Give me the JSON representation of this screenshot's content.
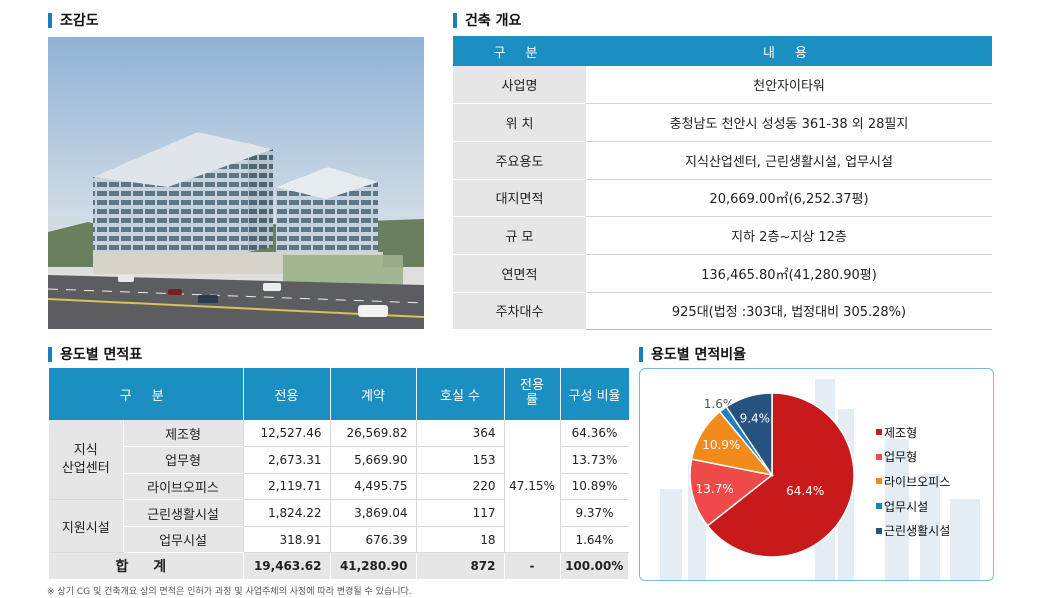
{
  "sections": {
    "birdseye": "조감도",
    "overview": "건축 개요",
    "area_table": "용도별 면적표",
    "area_ratio": "용도별 면적비율"
  },
  "overview": {
    "header": [
      "구 분",
      "내 용"
    ],
    "rows": [
      {
        "label": "사업명",
        "value": "천안자이타워"
      },
      {
        "label": "위 치",
        "value": "충청남도 천안시 성성동 361-38 외 28필지"
      },
      {
        "label": "주요용도",
        "value": "지식산업센터, 근린생활시설, 업무시설"
      },
      {
        "label": "대지면적",
        "value": "20,669.00㎡(6,252.37평)"
      },
      {
        "label": "규 모",
        "value": "지하 2층~지상 12층"
      },
      {
        "label": "연면적",
        "value": "136,465.80㎡(41,280.90평)"
      },
      {
        "label": "주차대수",
        "value": "925대(법정 :303대, 법정대비 305.28%)"
      }
    ]
  },
  "area_table": {
    "headers": [
      "구 분",
      "전용",
      "계약",
      "호실 수",
      "전용\n률",
      "구성 비율"
    ],
    "groups": [
      "지식\n산업센터",
      "지원시설"
    ],
    "rows": [
      {
        "name": "제조형",
        "exclusive": "12,527.46",
        "contract": "26,569.82",
        "units": "364",
        "ratio": "64.36%"
      },
      {
        "name": "업무형",
        "exclusive": "2,673.31",
        "contract": "5,669.90",
        "units": "153",
        "ratio": "13.73%"
      },
      {
        "name": "라이브오피스",
        "exclusive": "2,119.71",
        "contract": "4,495.75",
        "units": "220",
        "ratio": "10.89%"
      },
      {
        "name": "근린생활시설",
        "exclusive": "1,824.22",
        "contract": "3,869.04",
        "units": "117",
        "ratio": "9.37%"
      },
      {
        "name": "업무시설",
        "exclusive": "318.91",
        "contract": "676.39",
        "units": "18",
        "ratio": "1.64%"
      }
    ],
    "usage_rate": "47.15%",
    "total": {
      "label": "합 계",
      "exclusive": "19,463.62",
      "contract": "41,280.90",
      "units": "872",
      "usage_rate": "-",
      "ratio": "100.00%"
    }
  },
  "note": "※ 상기 CG 및 건축개요 상의 면적은 인허가 과정 및 사업주체의 사정에 따라 변경될 수 있습니다.",
  "chart_data": {
    "type": "pie",
    "title": "",
    "slices": [
      {
        "name": "제조형",
        "value": 64.4,
        "label": "64.4%",
        "color": "#c81a1a"
      },
      {
        "name": "업무형",
        "value": 13.7,
        "label": "13.7%",
        "color": "#ee4a4a"
      },
      {
        "name": "라이브오피스",
        "value": 10.9,
        "label": "10.9%",
        "color": "#f28a1c"
      },
      {
        "name": "업무시설",
        "value": 1.6,
        "label": "1.6%",
        "color": "#1f7fc4"
      },
      {
        "name": "근린생활시설",
        "value": 9.4,
        "label": "9.4%",
        "color": "#25527e"
      }
    ],
    "legend_position": "right"
  }
}
